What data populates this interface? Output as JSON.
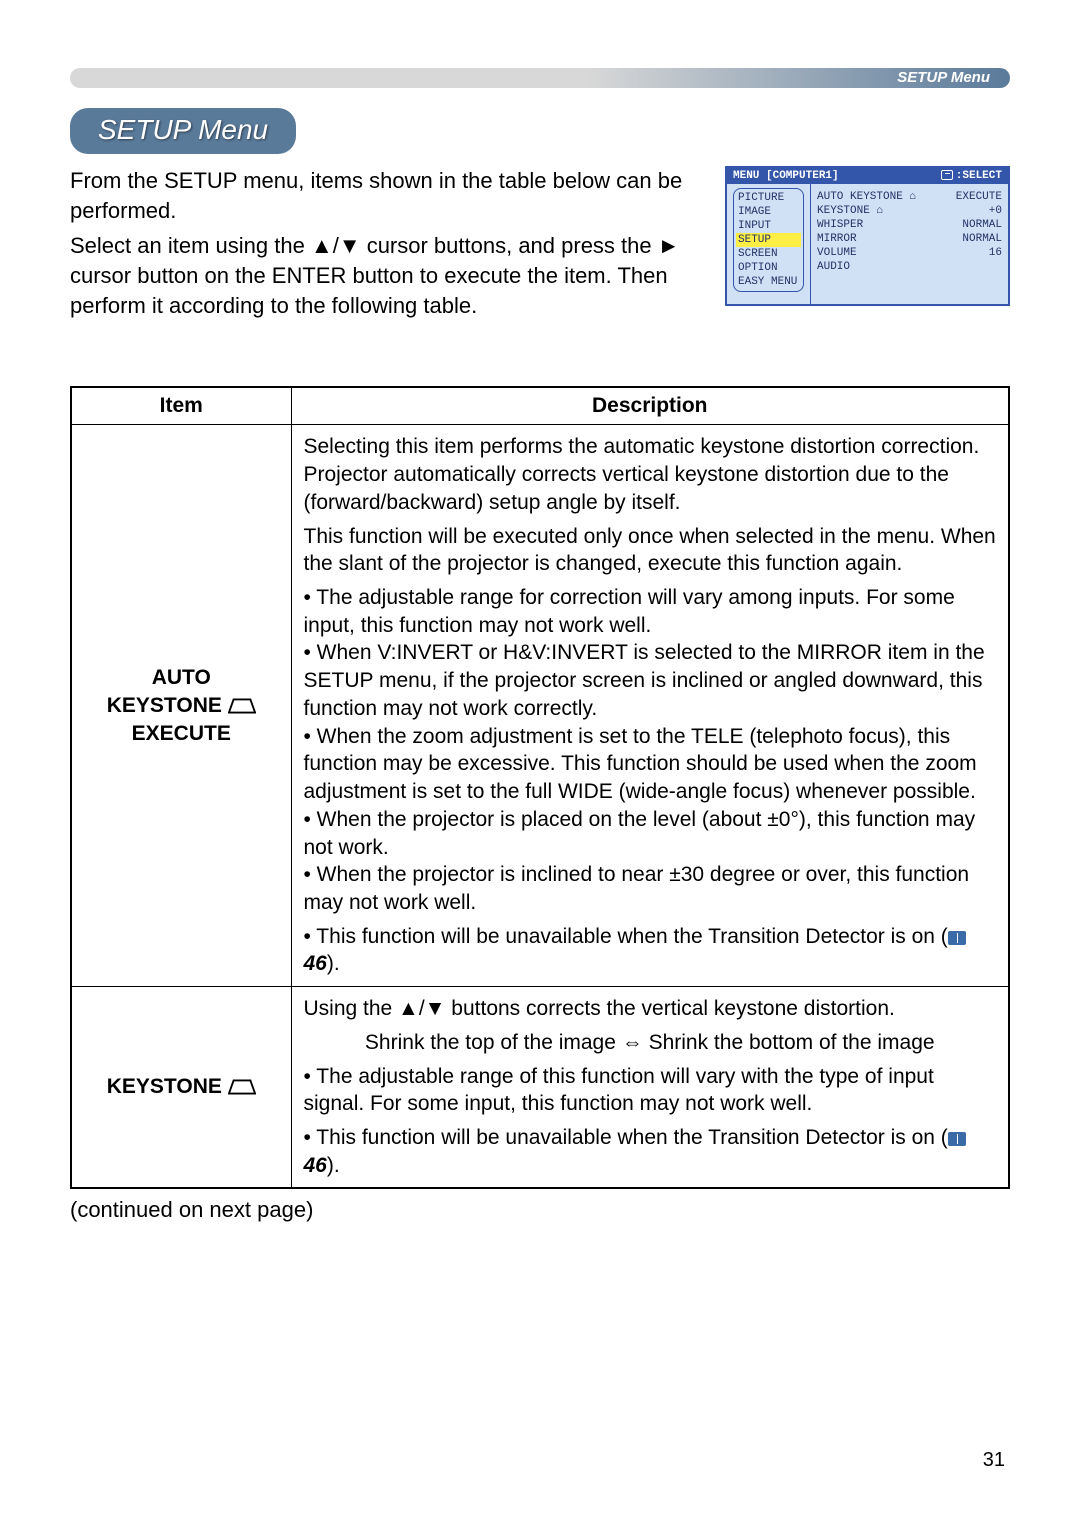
{
  "header": {
    "label": "SETUP Menu",
    "gradient_start": "#d8d8d8",
    "gradient_end": "#5a7a9a"
  },
  "section_title": "SETUP Menu",
  "intro": {
    "p1": "From the SETUP menu, items shown in the table below can be performed.",
    "p2": "Select an item using the ▲/▼ cursor buttons, and press the ► cursor button on the ENTER button to execute the item. Then perform it according to the following table."
  },
  "menu_shot": {
    "top_left": "MENU [COMPUTER1]",
    "top_right": ":SELECT",
    "left_items": [
      "PICTURE",
      "IMAGE",
      "INPUT",
      "SETUP",
      "SCREEN",
      "OPTION",
      "EASY MENU"
    ],
    "selected_index": 3,
    "right_rows": [
      {
        "k": "AUTO KEYSTONE ⌂",
        "v": "EXECUTE"
      },
      {
        "k": "KEYSTONE ⌂",
        "v": "+0"
      },
      {
        "k": "WHISPER",
        "v": "NORMAL"
      },
      {
        "k": "MIRROR",
        "v": "NORMAL"
      },
      {
        "k": "VOLUME",
        "v": "16"
      },
      {
        "k": "AUDIO",
        "v": ""
      }
    ]
  },
  "table": {
    "headers": {
      "item": "Item",
      "desc": "Description"
    },
    "rows": [
      {
        "item_lines": [
          "AUTO",
          "KEYSTONE",
          "EXECUTE"
        ],
        "item_has_trap_after_line": 1,
        "desc": {
          "p1": "Selecting this item performs the automatic keystone distortion correction. Projector automatically corrects vertical keystone distortion due to the (forward/backward) setup angle by itself.",
          "p2": "This function will be executed only once when selected in the menu. When the slant of the projector is changed, execute this function again.",
          "bullets": "• The adjustable range for correction will vary among inputs. For some input, this function may not work well.\n• When V:INVERT or H&V:INVERT is selected to the MIRROR item in the SETUP menu, if the projector screen is inclined or angled downward, this function may not work correctly.\n• When the zoom adjustment is set to the TELE (telephoto focus), this function may be excessive. This function should be used when the zoom adjustment is set to the full WIDE (wide-angle focus) whenever possible.\n• When the projector is placed on the level (about ±0°), this function may not work.\n• When the projector is inclined to near ±30 degree or over, this function may not work well.",
          "last_prefix": "• This function will be unavailable when the Transition Detector is on (",
          "last_ref": "46",
          "last_suffix": ")."
        }
      },
      {
        "item_lines": [
          "KEYSTONE"
        ],
        "item_has_trap_after_line": 0,
        "desc": {
          "p1": "Using the ▲/▼ buttons corrects the vertical keystone distortion.",
          "p2": "Shrink the top of the image ⇔ Shrink the bottom of the image",
          "bullets": "• The adjustable range of this function will vary with the type of input signal. For some input, this function may not work well.",
          "last_prefix": "• This function will be unavailable when the Transition Detector is on (",
          "last_ref": "46",
          "last_suffix": ")."
        }
      }
    ]
  },
  "continued": "(continued on next page)",
  "page_number": "31"
}
